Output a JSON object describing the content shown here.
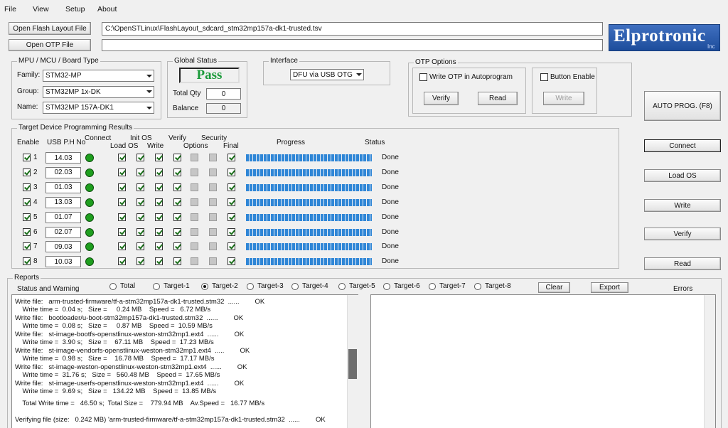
{
  "menu": [
    "File",
    "View",
    "Setup",
    "About"
  ],
  "flash": {
    "button": "Open Flash Layout File",
    "path": "C:\\OpenSTLinux\\FlashLayout_sdcard_stm32mp157a-dk1-trusted.tsv"
  },
  "otp_file": {
    "button": "Open OTP File"
  },
  "logo": {
    "name": "Elprotronic",
    "suffix": "Inc"
  },
  "mpu": {
    "title": "MPU / MCU / Board Type",
    "fields": [
      {
        "label": "Family:",
        "value": "STM32-MP"
      },
      {
        "label": "Group:",
        "value": "STM32MP 1x-DK"
      },
      {
        "label": "Name:",
        "value": "STM32MP 157A-DK1"
      }
    ]
  },
  "global_status": {
    "title": "Global Status",
    "status": "Pass",
    "total_qty": {
      "label": "Total Qty",
      "value": "0"
    },
    "balance": {
      "label": "Balance",
      "value": "0"
    }
  },
  "interface": {
    "title": "Interface",
    "value": "DFU via USB OTG"
  },
  "otp_options": {
    "title": "OTP Options",
    "write_otp": "Write OTP in Autoprogram",
    "verify": "Verify",
    "read": "Read",
    "button_enable": "Button Enable",
    "write": "Write"
  },
  "auto_prog": "AUTO PROG. (F8)",
  "side_buttons": [
    "Connect",
    "Load OS",
    "Write",
    "Verify",
    "Read"
  ],
  "results": {
    "title": "Target Device Programming Results",
    "headers": {
      "enable": "Enable",
      "usb": "USB P.H No",
      "connect": "Connect",
      "init_os": "Init OS",
      "load_os": "Load OS",
      "write": "Write",
      "verify": "Verify",
      "security": "Security",
      "options": "Options",
      "final": "Final",
      "progress": "Progress",
      "status": "Status"
    },
    "columns_enabled": [
      true,
      true,
      true,
      true,
      false,
      false,
      true
    ],
    "connect_color": "#1e9e1e",
    "rows": [
      {
        "id": "1",
        "usb": "14.03",
        "progress": 100,
        "status": "Done"
      },
      {
        "id": "2",
        "usb": "02.03",
        "progress": 100,
        "status": "Done"
      },
      {
        "id": "3",
        "usb": "01.03",
        "progress": 100,
        "status": "Done"
      },
      {
        "id": "4",
        "usb": "13.03",
        "progress": 100,
        "status": "Done"
      },
      {
        "id": "5",
        "usb": "01.07",
        "progress": 100,
        "status": "Done"
      },
      {
        "id": "6",
        "usb": "02.07",
        "progress": 100,
        "status": "Done"
      },
      {
        "id": "7",
        "usb": "09.03",
        "progress": 100,
        "status": "Done"
      },
      {
        "id": "8",
        "usb": "10.03",
        "progress": 100,
        "status": "Done"
      }
    ]
  },
  "reports": {
    "title": "Reports",
    "status_label": "Status and Warning",
    "radios": [
      "Total",
      "Target-1",
      "Target-2",
      "Target-3",
      "Target-4",
      "Target-5",
      "Target-6",
      "Target-7",
      "Target-8"
    ],
    "selected": 2,
    "clear": "Clear",
    "export": "Export",
    "errors": "Errors",
    "log": [
      {
        "text": "Write file:   arm-trusted-firmware/tf-a-stm32mp157a-dk1-trusted.stm32  ......",
        "result": "OK"
      },
      {
        "text": "    Write time =  0.04 s;   Size =     0.24 MB    Speed =   6.72 MB/s"
      },
      {
        "text": "Write file:   bootloader/u-boot-stm32mp157a-dk1-trusted.stm32  ......",
        "result": "OK"
      },
      {
        "text": "    Write time =  0.08 s;   Size =     0.87 MB    Speed =  10.59 MB/s"
      },
      {
        "text": "Write file:   st-image-bootfs-openstlinux-weston-stm32mp1.ext4  ......",
        "result": "OK"
      },
      {
        "text": "    Write time =  3.90 s;   Size =    67.11 MB    Speed =  17.23 MB/s"
      },
      {
        "text": "Write file:   st-image-vendorfs-openstlinux-weston-stm32mp1.ext4  .....",
        "result": "OK"
      },
      {
        "text": "    Write time =  0.98 s;   Size =    16.78 MB    Speed =  17.17 MB/s"
      },
      {
        "text": "Write file:   st-image-weston-openstlinux-weston-stm32mp1.ext4  ......",
        "result": "OK"
      },
      {
        "text": "    Write time =  31.76 s;   Size =   560.48 MB    Speed =  17.65 MB/s"
      },
      {
        "text": "Write file:   st-image-userfs-openstlinux-weston-stm32mp1.ext4  ......",
        "result": "OK"
      },
      {
        "text": "    Write time =  9.69 s;   Size =   134.22 MB    Speed =  13.85 MB/s"
      },
      {
        "text": "    Total Write time =   46.50 s;  Total Size =    779.94 MB    Av.Speed =   16.77 MB/s"
      },
      {
        "text": "Verifying file (size:   0.242 MB) 'arm-trusted-firmware/tf-a-stm32mp157a-dk1-trusted.stm32  ......",
        "result": "OK"
      }
    ]
  }
}
